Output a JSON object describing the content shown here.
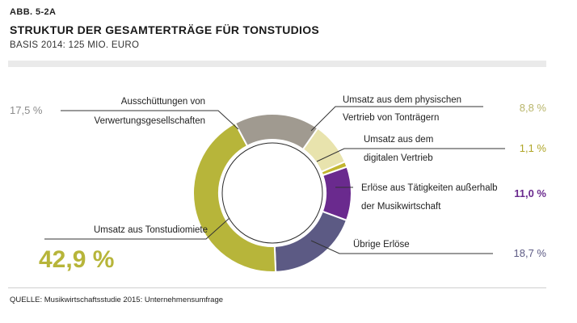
{
  "figure": {
    "id": "ABB. 5-2A",
    "title": "STRUKTUR DER GESAMTERTRÄGE FÜR TONSTUDIOS",
    "subtitle": "BASIS 2014: 125 MIO. EURO",
    "source": "QUELLE: Musikwirtschaftsstudie 2015: Unternehmensumfrage"
  },
  "chart_data": {
    "type": "pie",
    "donut": true,
    "slices": [
      {
        "name": "Umsatz aus dem physischen Vertrieb von Tonträgern",
        "value": 8.8,
        "label": "8,8 %",
        "color": "#e8e3ad",
        "pct_color": "#b8b56a"
      },
      {
        "name": "Umsatz aus dem digitalen Vertrieb",
        "value": 1.1,
        "label": "1,1 %",
        "color": "#c2b630",
        "pct_color": "#b0a628"
      },
      {
        "name": "Erlöse aus Tätigkeiten außerhalb der Musikwirtschaft",
        "value": 11.0,
        "label": "11,0 %",
        "color": "#6a2a8e",
        "pct_color": "#6a2a8e"
      },
      {
        "name": "Übrige Erlöse",
        "value": 18.7,
        "label": "18,7 %",
        "color": "#5c5a84",
        "pct_color": "#5c5a84"
      },
      {
        "name": "Umsatz aus Tonstudiomiete",
        "value": 42.9,
        "label": "42,9 %",
        "color": "#b7b53a",
        "pct_color": "#b7b53a"
      },
      {
        "name": "Ausschüttungen von Verwertungsgesellschaften",
        "value": 17.5,
        "label": "17,5 %",
        "color": "#a09a90",
        "pct_color": "#8c8c8c"
      }
    ]
  }
}
